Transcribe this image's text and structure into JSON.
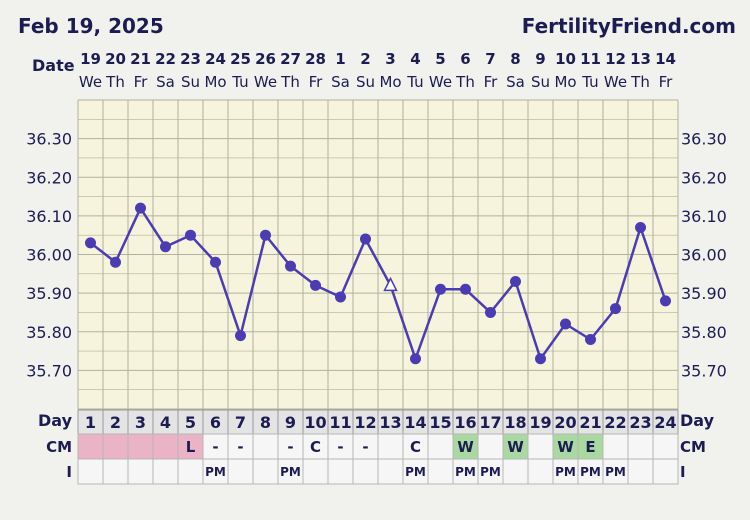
{
  "header": {
    "date": "Feb 19, 2025",
    "brand": "FertilityFriend.com"
  },
  "labels": {
    "date_row": "Date",
    "day_row": "Day",
    "cm_row": "CM",
    "i_row": "I"
  },
  "dates": [
    "19",
    "20",
    "21",
    "22",
    "23",
    "24",
    "25",
    "26",
    "27",
    "28",
    "1",
    "2",
    "3",
    "4",
    "5",
    "6",
    "7",
    "8",
    "9",
    "10",
    "11",
    "12",
    "13",
    "14"
  ],
  "weekdays": [
    "We",
    "Th",
    "Fr",
    "Sa",
    "Su",
    "Mo",
    "Tu",
    "We",
    "Th",
    "Fr",
    "Sa",
    "Su",
    "Mo",
    "Tu",
    "We",
    "Th",
    "Fr",
    "Sa",
    "Su",
    "Mo",
    "Tu",
    "We",
    "Th",
    "Fr"
  ],
  "colors": {
    "line": "#4b3cb4",
    "chart_bg": "#f6f4dc",
    "grid": "#b3b19b",
    "menstruation": "#eab4c6",
    "fertile_cm": "#a9d8a0",
    "text": "#1c1c52"
  },
  "chart_data": {
    "type": "line",
    "x": [
      1,
      2,
      3,
      4,
      5,
      6,
      7,
      8,
      9,
      10,
      11,
      12,
      13,
      14,
      15,
      16,
      17,
      18,
      19,
      20,
      21,
      22,
      23,
      24
    ],
    "xlabel": "Day",
    "ylabel": "",
    "ylim": [
      35.6,
      36.4
    ],
    "y_ticks": [
      "36.30",
      "36.20",
      "36.10",
      "36.00",
      "35.90",
      "35.80",
      "35.70"
    ],
    "series": [
      {
        "values": [
          36.03,
          35.98,
          36.12,
          36.02,
          36.05,
          35.98,
          35.79,
          36.05,
          35.97,
          35.92,
          35.89,
          36.04,
          35.92,
          35.73,
          35.91,
          35.91,
          35.85,
          35.93,
          35.73,
          35.82,
          35.78,
          35.86,
          36.07,
          35.88
        ],
        "markers": [
          "dot",
          "dot",
          "dot",
          "dot",
          "dot",
          "dot",
          "dot",
          "dot",
          "dot",
          "dot",
          "dot",
          "dot",
          "triangle",
          "dot",
          "dot",
          "dot",
          "dot",
          "dot",
          "dot",
          "dot",
          "dot",
          "dot",
          "dot",
          "dot"
        ]
      }
    ],
    "grid": true
  },
  "cm": [
    "",
    "",
    "",
    "",
    "L",
    "-",
    "-",
    "",
    "-",
    "C",
    "-",
    "-",
    "",
    "C",
    "",
    "W",
    "",
    "W",
    "",
    "W",
    "E",
    "",
    "",
    ""
  ],
  "cm_fill": [
    "menstruation",
    "menstruation",
    "menstruation",
    "menstruation",
    "menstruation",
    "",
    "",
    "",
    "",
    "",
    "",
    "",
    "",
    "",
    "",
    "fertile_cm",
    "",
    "fertile_cm",
    "",
    "fertile_cm",
    "fertile_cm",
    "",
    "",
    ""
  ],
  "intercourse": [
    "",
    "",
    "",
    "",
    "",
    "PM",
    "",
    "",
    "PM",
    "",
    "",
    "",
    "",
    "PM",
    "",
    "PM",
    "PM",
    "",
    "",
    "PM",
    "PM",
    "PM",
    "",
    ""
  ]
}
